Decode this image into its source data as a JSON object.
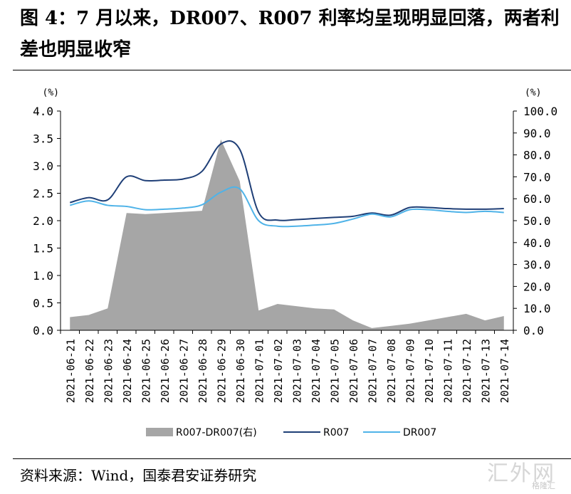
{
  "figure": {
    "title": "图 4：7 月以来，DR007、R007 利率均呈现明显回落，两者利差也明显收窄",
    "source": "资料来源：Wind，国泰君安证券研究",
    "watermark": "汇外网",
    "watermark_small": "格隆汇"
  },
  "chart_data": {
    "type": "line",
    "categories": [
      "2021-06-21",
      "2021-06-22",
      "2021-06-23",
      "2021-06-24",
      "2021-06-25",
      "2021-06-26",
      "2021-06-27",
      "2021-06-28",
      "2021-06-29",
      "2021-06-30",
      "2021-07-01",
      "2021-07-02",
      "2021-07-03",
      "2021-07-04",
      "2021-07-05",
      "2021-07-06",
      "2021-07-07",
      "2021-07-08",
      "2021-07-09",
      "2021-07-10",
      "2021-07-11",
      "2021-07-12",
      "2021-07-13",
      "2021-07-14"
    ],
    "left_axis": {
      "unit": "(%)",
      "ylim": [
        0,
        4.0
      ],
      "ticks": [
        "0.0",
        "0.5",
        "1.0",
        "1.5",
        "2.0",
        "2.5",
        "3.0",
        "3.5",
        "4.0"
      ]
    },
    "right_axis": {
      "unit": "(%)",
      "ylim": [
        0,
        100
      ],
      "ticks": [
        "0.0",
        "10.0",
        "20.0",
        "30.0",
        "40.0",
        "50.0",
        "60.0",
        "70.0",
        "80.0",
        "90.0",
        "100.0"
      ]
    },
    "series": [
      {
        "name": "R007-DR007(右)",
        "kind": "area",
        "axis": "right",
        "color": "#a6a6a6",
        "values": [
          6,
          7,
          10,
          53.5,
          53,
          53.5,
          54,
          54.5,
          87,
          68,
          9,
          12,
          11,
          10,
          9.5,
          4.5,
          1,
          2,
          3,
          4.5,
          6,
          7.5,
          4.5,
          6.5
        ]
      },
      {
        "name": "R007",
        "kind": "line",
        "axis": "left",
        "color": "#1f3f77",
        "values": [
          2.33,
          2.42,
          2.38,
          2.8,
          2.73,
          2.74,
          2.76,
          2.9,
          3.4,
          3.3,
          2.15,
          2.01,
          2.02,
          2.04,
          2.06,
          2.08,
          2.14,
          2.1,
          2.24,
          2.24,
          2.22,
          2.21,
          2.21,
          2.22
        ]
      },
      {
        "name": "DR007",
        "kind": "line",
        "axis": "left",
        "color": "#4fb3e8",
        "values": [
          2.28,
          2.36,
          2.28,
          2.26,
          2.2,
          2.21,
          2.23,
          2.29,
          2.52,
          2.58,
          2.0,
          1.9,
          1.9,
          1.92,
          1.95,
          2.03,
          2.12,
          2.07,
          2.2,
          2.2,
          2.17,
          2.15,
          2.17,
          2.15
        ]
      }
    ],
    "legend_position": "bottom",
    "grid": false
  }
}
